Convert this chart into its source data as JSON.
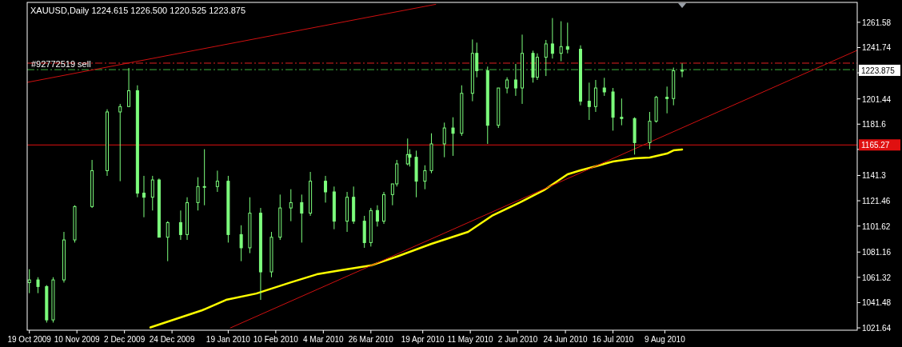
{
  "chart_data": {
    "type": "candlestick",
    "title": "XAUUSD,Daily  1224.615 1226.500 1220.525 1223.875",
    "color": "#7dff7d",
    "x": [
      "2009-10-19",
      "2009-10-23",
      "2009-10-27",
      "2009-10-30",
      "2009-11-04",
      "2009-11-09",
      "2009-11-17",
      "2009-11-24",
      "2009-11-30",
      "2009-12-04",
      "2009-12-08",
      "2009-12-11",
      "2009-12-15",
      "2009-12-18",
      "2009-12-22",
      "2009-12-28",
      "2009-12-31",
      "2010-01-05",
      "2010-01-08",
      "2010-01-14",
      "2010-01-19",
      "2010-01-25",
      "2010-01-29",
      "2010-02-03",
      "2010-02-08",
      "2010-02-12",
      "2010-02-17",
      "2010-02-22",
      "2010-02-26",
      "2010-03-05",
      "2010-03-09",
      "2010-03-15",
      "2010-03-18",
      "2010-03-23",
      "2010-03-26",
      "2010-03-29",
      "2010-04-01",
      "2010-04-05",
      "2010-04-07",
      "2010-04-12",
      "2010-04-13",
      "2010-04-16",
      "2010-04-20",
      "2010-04-23",
      "2010-04-29",
      "2010-05-03",
      "2010-05-07",
      "2010-05-12",
      "2010-05-14",
      "2010-05-19",
      "2010-05-24",
      "2010-05-28",
      "2010-06-01",
      "2010-06-04",
      "2010-06-09",
      "2010-06-11",
      "2010-06-15",
      "2010-06-18",
      "2010-06-22",
      "2010-06-25",
      "2010-07-01",
      "2010-07-05",
      "2010-07-08",
      "2010-07-12",
      "2010-07-16",
      "2010-07-20",
      "2010-07-26",
      "2010-08-02",
      "2010-08-05",
      "2010-08-10",
      "2010-08-13",
      "2010-08-17"
    ],
    "ohlc": [
      [
        1057.2,
        1067.7,
        1048.9,
        1059.3
      ],
      [
        1059.3,
        1061.4,
        1048.9,
        1054.1
      ],
      [
        1054.1,
        1055.2,
        1025.8,
        1027.9
      ],
      [
        1027.9,
        1061.4,
        1025.8,
        1059.3
      ],
      [
        1059.3,
        1097.0,
        1057.2,
        1090.7
      ],
      [
        1090.7,
        1117.9,
        1088.6,
        1116.9
      ],
      [
        1116.9,
        1153.5,
        1115.8,
        1145.1
      ],
      [
        1145.1,
        1193.3,
        1141.0,
        1191.2
      ],
      [
        1191.2,
        1197.5,
        1136.8,
        1195.4
      ],
      [
        1195.4,
        1225.7,
        1195.4,
        1207.9
      ],
      [
        1207.9,
        1212.1,
        1124.2,
        1127.4
      ],
      [
        1127.4,
        1141.0,
        1108.5,
        1124.2
      ],
      [
        1124.2,
        1141.0,
        1113.8,
        1137.8
      ],
      [
        1137.8,
        1138.9,
        1092.8,
        1092.8
      ],
      [
        1092.8,
        1105.4,
        1074.0,
        1104.3
      ],
      [
        1104.3,
        1113.8,
        1090.7,
        1094.9
      ],
      [
        1094.9,
        1124.2,
        1090.7,
        1120.0
      ],
      [
        1120.0,
        1139.9,
        1113.8,
        1132.6
      ],
      [
        1132.6,
        1161.9,
        1117.9,
        1132.6
      ],
      [
        1132.6,
        1145.1,
        1128.4,
        1136.8
      ],
      [
        1136.8,
        1141.0,
        1088.6,
        1094.9
      ],
      [
        1094.9,
        1102.2,
        1074.0,
        1084.5
      ],
      [
        1084.5,
        1124.2,
        1080.3,
        1111.7
      ],
      [
        1111.7,
        1115.8,
        1043.6,
        1065.6
      ],
      [
        1065.6,
        1097.0,
        1061.4,
        1092.8
      ],
      [
        1092.8,
        1126.3,
        1090.7,
        1115.8
      ],
      [
        1115.8,
        1130.5,
        1105.4,
        1120.0
      ],
      [
        1120.0,
        1126.3,
        1088.6,
        1111.7
      ],
      [
        1111.7,
        1144.1,
        1109.6,
        1136.8
      ],
      [
        1136.8,
        1141.0,
        1120.0,
        1128.4
      ],
      [
        1128.4,
        1132.6,
        1099.1,
        1105.4
      ],
      [
        1105.4,
        1128.4,
        1097.0,
        1124.2
      ],
      [
        1124.2,
        1132.6,
        1103.3,
        1105.4
      ],
      [
        1105.4,
        1109.6,
        1084.5,
        1088.6
      ],
      [
        1088.6,
        1115.8,
        1085.5,
        1113.8
      ],
      [
        1113.8,
        1117.9,
        1101.2,
        1105.4
      ],
      [
        1105.4,
        1128.4,
        1103.3,
        1126.3
      ],
      [
        1126.3,
        1134.7,
        1117.9,
        1134.7
      ],
      [
        1134.7,
        1153.5,
        1132.6,
        1150.4
      ],
      [
        1150.4,
        1170.3,
        1149.3,
        1157.7
      ],
      [
        1157.7,
        1161.9,
        1148.3,
        1155.6
      ],
      [
        1155.6,
        1160.8,
        1124.2,
        1136.8
      ],
      [
        1136.8,
        1149.3,
        1130.5,
        1145.1
      ],
      [
        1145.1,
        1174.4,
        1143.1,
        1166.1
      ],
      [
        1166.1,
        1182.8,
        1155.6,
        1178.6
      ],
      [
        1178.6,
        1187.0,
        1156.7,
        1174.4
      ],
      [
        1174.4,
        1212.1,
        1172.4,
        1205.8
      ],
      [
        1205.8,
        1248.1,
        1199.6,
        1237.2
      ],
      [
        1237.2,
        1245.6,
        1218.4,
        1223.6
      ],
      [
        1223.6,
        1226.8,
        1166.1,
        1180.7
      ],
      [
        1180.7,
        1210.0,
        1178.6,
        1210.0
      ],
      [
        1210.0,
        1218.4,
        1205.8,
        1216.3
      ],
      [
        1216.3,
        1228.9,
        1203.8,
        1210.0
      ],
      [
        1210.0,
        1251.9,
        1197.5,
        1237.2
      ],
      [
        1237.2,
        1239.3,
        1214.2,
        1218.4
      ],
      [
        1218.4,
        1237.2,
        1216.3,
        1234.1
      ],
      [
        1234.1,
        1247.7,
        1219.4,
        1244.6
      ],
      [
        1244.6,
        1264.9,
        1233.1,
        1237.2
      ],
      [
        1237.2,
        1262.4,
        1231.0,
        1242.5
      ],
      [
        1242.5,
        1261.3,
        1237.2,
        1240.4
      ],
      [
        1240.4,
        1243.5,
        1196.4,
        1199.6
      ],
      [
        1199.6,
        1214.2,
        1184.9,
        1195.4
      ],
      [
        1195.4,
        1216.3,
        1191.2,
        1210.0
      ],
      [
        1210.0,
        1218.0,
        1203.8,
        1206.9
      ],
      [
        1206.9,
        1210.0,
        1176.5,
        1187.0
      ],
      [
        1187.0,
        1201.7,
        1180.7,
        1186.0
      ],
      [
        1186.0,
        1187.0,
        1157.7,
        1167.1
      ],
      [
        1167.1,
        1191.2,
        1161.9,
        1183.9
      ],
      [
        1183.9,
        1203.8,
        1182.8,
        1202.7
      ],
      [
        1202.7,
        1211.1,
        1190.1,
        1201.7
      ],
      [
        1201.7,
        1226.0,
        1196.4,
        1223.6
      ],
      [
        1223.6,
        1229.3,
        1218.4,
        1223.875
      ]
    ],
    "series": [
      {
        "type": "line",
        "color": "#ffff00",
        "x": [
          "2009-12-14",
          "2010-01-07",
          "2010-01-18",
          "2010-02-01",
          "2010-02-17",
          "2010-03-01",
          "2010-03-12",
          "2010-03-26",
          "2010-04-08",
          "2010-04-23",
          "2010-05-10",
          "2010-05-21",
          "2010-06-03",
          "2010-06-14",
          "2010-06-25",
          "2010-07-01",
          "2010-07-08",
          "2010-07-16",
          "2010-07-26",
          "2010-08-02",
          "2010-08-10",
          "2010-08-13",
          "2010-08-17"
        ],
        "values": [
          1022.0,
          1035.5,
          1043.6,
          1048.6,
          1057.4,
          1063.7,
          1066.9,
          1070.6,
          1078.2,
          1087.6,
          1097.0,
          1109.6,
          1120.2,
          1129.7,
          1142.2,
          1145.4,
          1148.5,
          1152.3,
          1154.8,
          1155.4,
          1158.5,
          1161.0,
          1161.7
        ]
      },
      {
        "type": "line",
        "color": "#d01010",
        "x": [
          "2009-10-18",
          "2010-04-25"
        ],
        "values": [
          1214.4,
          1275.7
        ]
      },
      {
        "type": "line",
        "color": "#d01010",
        "x": [
          "2010-01-20",
          "2010-11-06"
        ],
        "values": [
          1021.6,
          1239.6
        ]
      }
    ],
    "ref_lines": [
      {
        "axis": "y",
        "value": 1229.5,
        "color": "#e02020",
        "line_style": "dashed"
      },
      {
        "axis": "y",
        "value": 1224.4,
        "label": "#92772519 sell",
        "color": "#40b040",
        "line_style": "dashed"
      },
      {
        "axis": "y",
        "value": 1165.27,
        "label": "1165.27",
        "color": "#e01010",
        "line_style": "solid"
      }
    ],
    "annotations": [
      "1223.875"
    ],
    "xlim": [
      "2009-10-18",
      "2010-11-06"
    ],
    "xticks": [
      {
        "value": "2009-10-19",
        "label": "19 Oct 2009"
      },
      {
        "value": "2009-11-10",
        "label": "10 Nov 2009"
      },
      {
        "value": "2009-12-02",
        "label": "2 Dec 2009"
      },
      {
        "value": "2009-12-24",
        "label": "24 Dec 2009"
      },
      {
        "value": "2010-01-19",
        "label": "19 Jan 2010"
      },
      {
        "value": "2010-02-10",
        "label": "10 Feb 2010"
      },
      {
        "value": "2010-03-04",
        "label": "4 Mar 2010"
      },
      {
        "value": "2010-03-26",
        "label": "26 Mar 2010"
      },
      {
        "value": "2010-04-19",
        "label": "19 Apr 2010"
      },
      {
        "value": "2010-05-11",
        "label": "11 May 2010"
      },
      {
        "value": "2010-06-02",
        "label": "2 Jun 2010"
      },
      {
        "value": "2010-06-24",
        "label": "24 Jun 2010"
      },
      {
        "value": "2010-07-16",
        "label": "16 Jul 2010"
      },
      {
        "value": "2010-08-09",
        "label": "9 Aug 2010"
      }
    ],
    "ylim": [
      1019.8,
      1277.2
    ],
    "yticks": [
      1021.64,
      1041.48,
      1061.32,
      1081.16,
      1101.62,
      1121.46,
      1141.3,
      {
        "value": 1161.76,
        "label": null
      },
      1181.6,
      1201.44,
      {
        "value": 1221.9,
        "label": null
      },
      1241.74,
      1261.58
    ]
  }
}
